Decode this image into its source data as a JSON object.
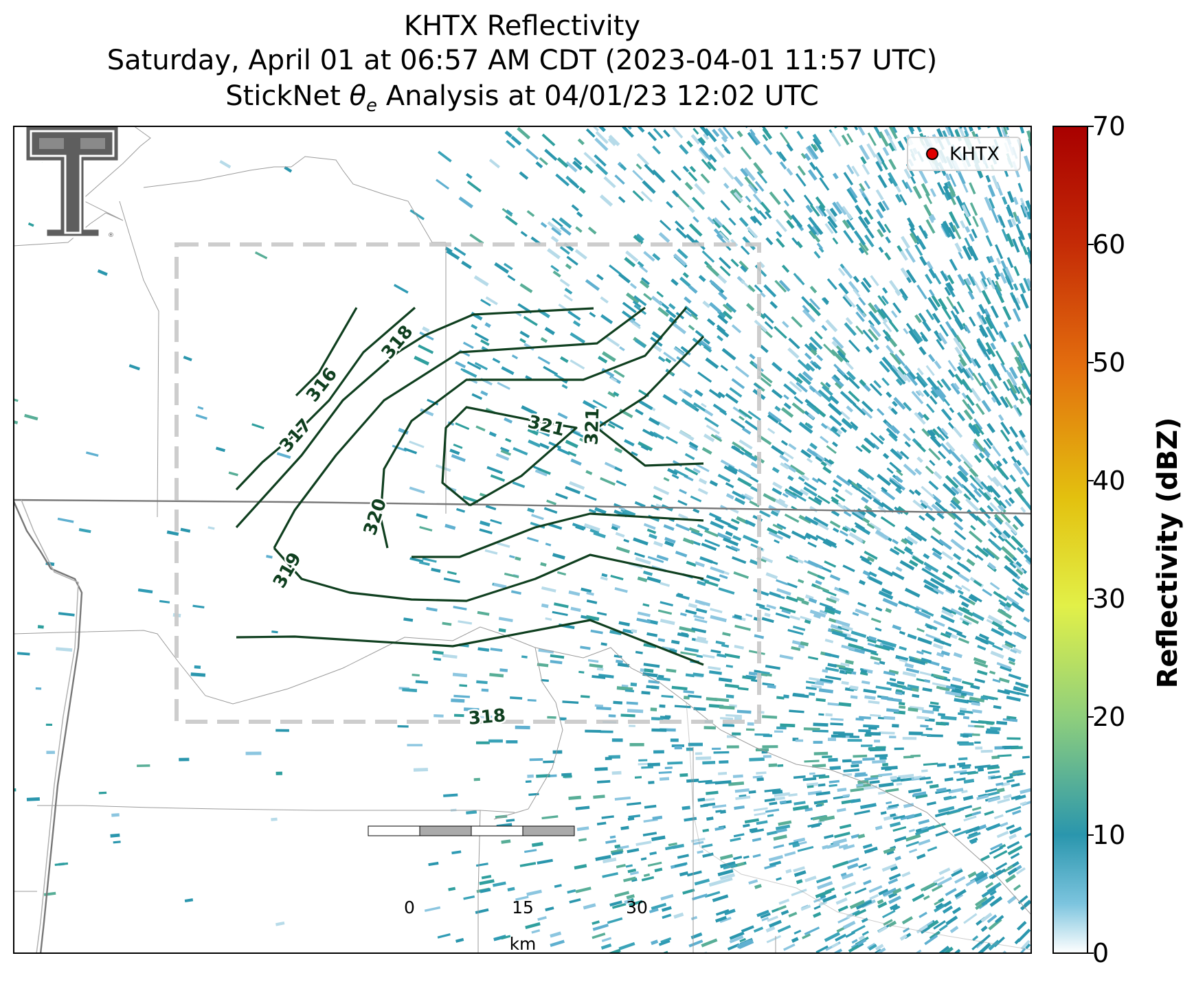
{
  "title": {
    "line1": "KHTX Reflectivity",
    "line2": "Saturday, April 01 at 06:57 AM CDT (2023-04-01 11:57 UTC)",
    "line3_prefix": "StickNet ",
    "line3_theta": "θ",
    "line3_sub": "e",
    "line3_suffix": " Analysis at 04/01/23 12:02 UTC"
  },
  "legend": {
    "label": "KHTX",
    "marker_color": "#e00000"
  },
  "colorbar": {
    "label": "Reflectivity (dBZ)",
    "ticks": [
      "0",
      "10",
      "20",
      "30",
      "40",
      "50",
      "60",
      "70"
    ],
    "range": [
      0,
      70
    ],
    "colors": [
      "#ffffff",
      "#2a96ad",
      "#8fcf7c",
      "#e2f048",
      "#e3c10f",
      "#e36e0e",
      "#c42a06",
      "#a80000"
    ]
  },
  "contours": {
    "color": "#0f3f1f",
    "labels": [
      "316",
      "317",
      "318",
      "319",
      "320",
      "321",
      "321",
      "318"
    ]
  },
  "scalebar": {
    "ticks": [
      "0",
      "15",
      "30"
    ],
    "unit": "km"
  },
  "logo": {
    "name": "texas-tech-double-t-logo"
  }
}
